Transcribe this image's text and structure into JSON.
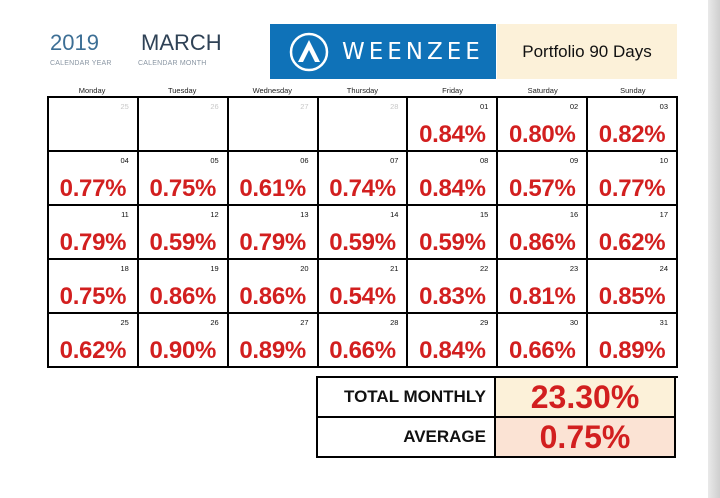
{
  "header": {
    "year": "2019",
    "year_caption": "CALENDAR YEAR",
    "month": "MARCH",
    "month_caption": "CALENDAR MONTH",
    "brand_name": "WEENZEE",
    "portfolio_label": "Portfolio 90 Days"
  },
  "colors": {
    "brand_blue": "#0f72b8",
    "value_red": "#d21f1f",
    "portfolio_bg": "#fcf1d9",
    "average_bg": "#fbe3d4"
  },
  "weekdays": [
    "Monday",
    "Tuesday",
    "Wednesday",
    "Thursday",
    "Friday",
    "Saturday",
    "Sunday"
  ],
  "weeks": [
    [
      {
        "day": "25",
        "value": "",
        "muted": true
      },
      {
        "day": "26",
        "value": "",
        "muted": true
      },
      {
        "day": "27",
        "value": "",
        "muted": true
      },
      {
        "day": "28",
        "value": "",
        "muted": true
      },
      {
        "day": "01",
        "value": "0.84%"
      },
      {
        "day": "02",
        "value": "0.80%"
      },
      {
        "day": "03",
        "value": "0.82%"
      }
    ],
    [
      {
        "day": "04",
        "value": "0.77%"
      },
      {
        "day": "05",
        "value": "0.75%"
      },
      {
        "day": "06",
        "value": "0.61%"
      },
      {
        "day": "07",
        "value": "0.74%"
      },
      {
        "day": "08",
        "value": "0.84%"
      },
      {
        "day": "09",
        "value": "0.57%"
      },
      {
        "day": "10",
        "value": "0.77%"
      }
    ],
    [
      {
        "day": "11",
        "value": "0.79%"
      },
      {
        "day": "12",
        "value": "0.59%"
      },
      {
        "day": "13",
        "value": "0.79%"
      },
      {
        "day": "14",
        "value": "0.59%"
      },
      {
        "day": "15",
        "value": "0.59%"
      },
      {
        "day": "16",
        "value": "0.86%"
      },
      {
        "day": "17",
        "value": "0.62%"
      }
    ],
    [
      {
        "day": "18",
        "value": "0.75%"
      },
      {
        "day": "19",
        "value": "0.86%"
      },
      {
        "day": "20",
        "value": "0.86%"
      },
      {
        "day": "21",
        "value": "0.54%"
      },
      {
        "day": "22",
        "value": "0.83%"
      },
      {
        "day": "23",
        "value": "0.81%"
      },
      {
        "day": "24",
        "value": "0.85%"
      }
    ],
    [
      {
        "day": "25",
        "value": "0.62%"
      },
      {
        "day": "26",
        "value": "0.90%"
      },
      {
        "day": "27",
        "value": "0.89%"
      },
      {
        "day": "28",
        "value": "0.66%"
      },
      {
        "day": "29",
        "value": "0.84%"
      },
      {
        "day": "30",
        "value": "0.66%"
      },
      {
        "day": "31",
        "value": "0.89%"
      }
    ]
  ],
  "summary": {
    "total_label": "TOTAL MONTHLY",
    "total_value": "23.30%",
    "average_label": "AVERAGE",
    "average_value": "0.75%"
  }
}
